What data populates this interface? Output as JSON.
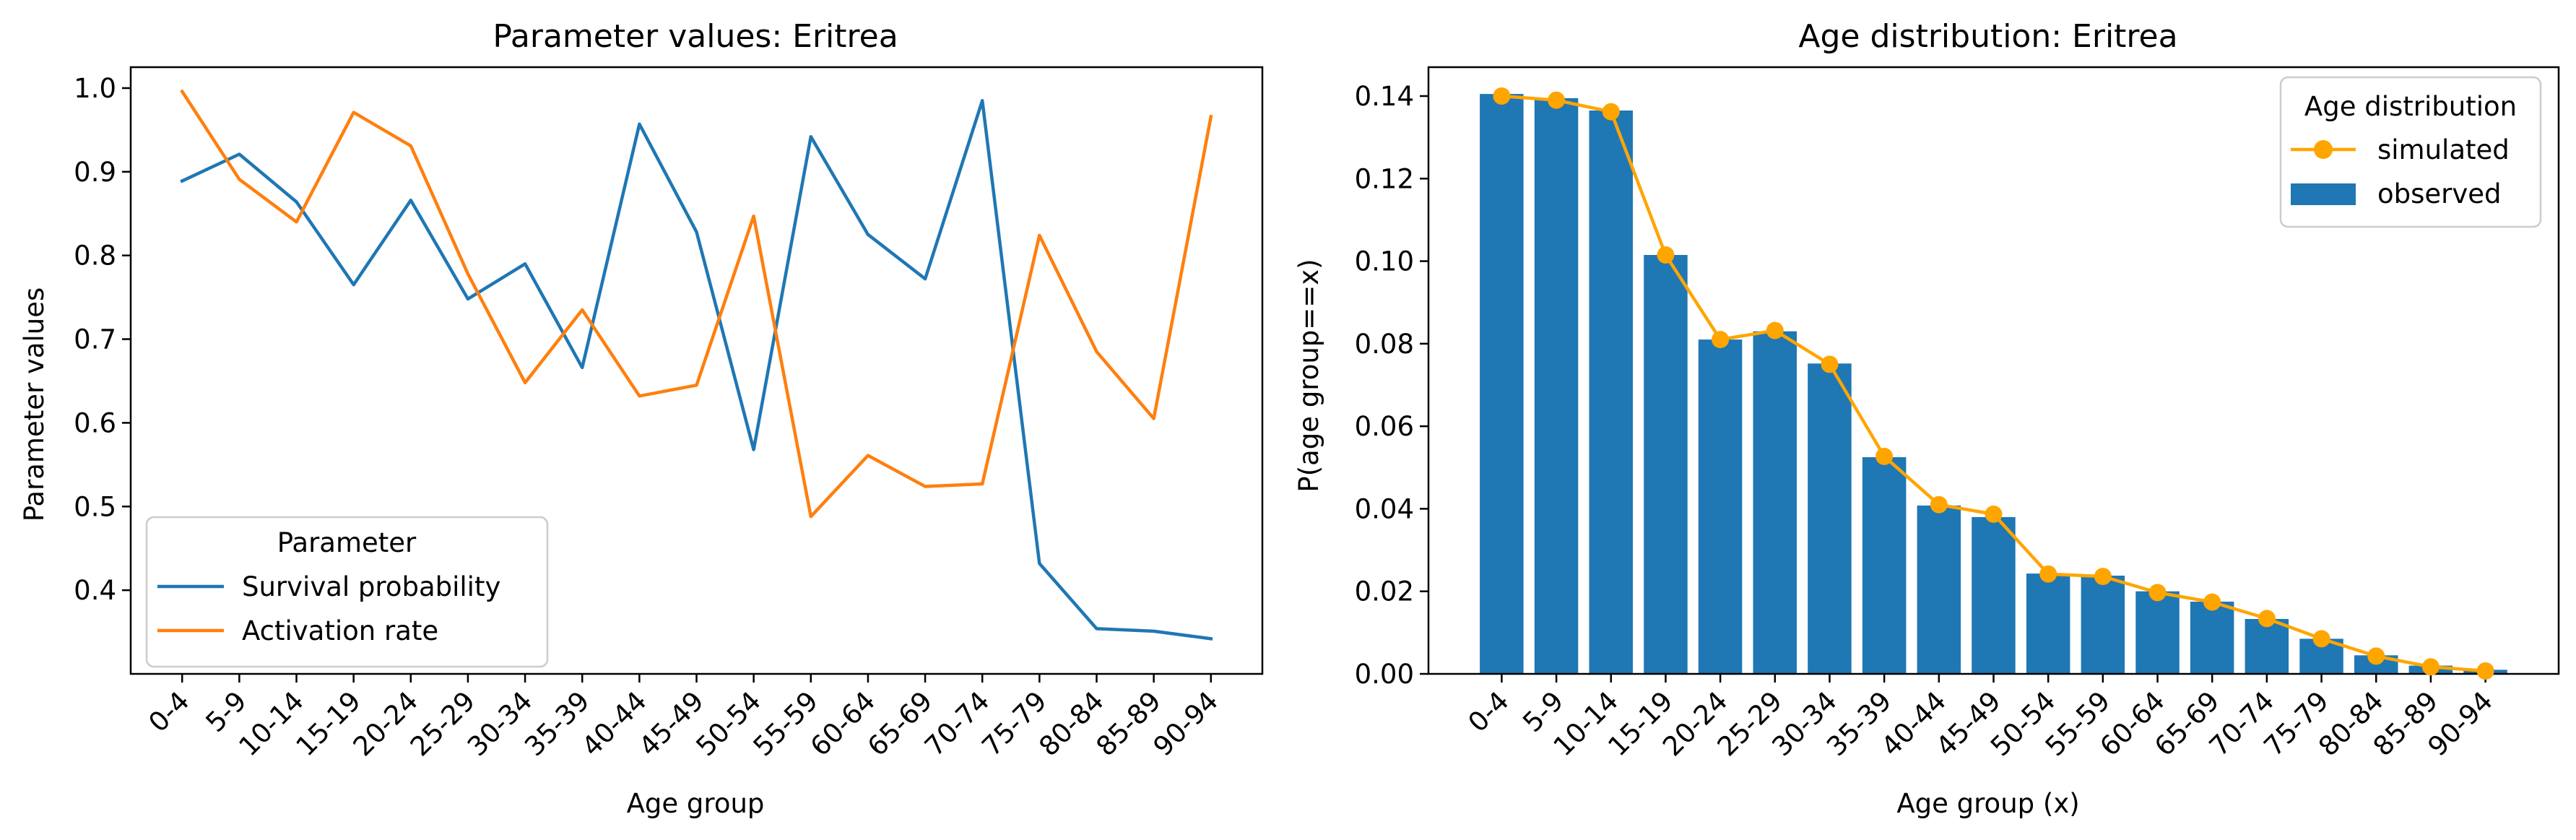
{
  "chart_data": [
    {
      "type": "line",
      "title": "Parameter values: Eritrea",
      "xlabel": "Age group",
      "ylabel": "Parameter values",
      "categories": [
        "0-4",
        "5-9",
        "10-14",
        "15-19",
        "20-24",
        "25-29",
        "30-34",
        "35-39",
        "40-44",
        "45-49",
        "50-54",
        "55-59",
        "60-64",
        "65-69",
        "70-74",
        "75-79",
        "80-84",
        "85-89",
        "90-94"
      ],
      "ylim": [
        0.3,
        1.025
      ],
      "yticks": [
        0.4,
        0.5,
        0.6,
        0.7,
        0.8,
        0.9,
        1.0
      ],
      "ytick_labels": [
        "0.4",
        "0.5",
        "0.6",
        "0.7",
        "0.8",
        "0.9",
        "1.0"
      ],
      "grid": false,
      "legend": {
        "title": "Parameter",
        "placement": "lower-left"
      },
      "series": [
        {
          "name": "Survival probability",
          "color": "#1f77b4",
          "values": [
            0.889,
            0.921,
            0.864,
            0.765,
            0.866,
            0.748,
            0.79,
            0.666,
            0.957,
            0.828,
            0.568,
            0.942,
            0.825,
            0.772,
            0.985,
            0.432,
            0.354,
            0.351,
            0.342
          ]
        },
        {
          "name": "Activation rate",
          "color": "#ff7f0e",
          "values": [
            0.996,
            0.891,
            0.84,
            0.971,
            0.931,
            0.778,
            0.648,
            0.735,
            0.632,
            0.645,
            0.847,
            0.488,
            0.561,
            0.524,
            0.527,
            0.824,
            0.685,
            0.605,
            0.966
          ]
        }
      ]
    },
    {
      "type": "bar",
      "title": "Age distribution: Eritrea",
      "xlabel": "Age group (x)",
      "ylabel": "P(age group==x)",
      "categories": [
        "0-4",
        "5-9",
        "10-14",
        "15-19",
        "20-24",
        "25-29",
        "30-34",
        "35-39",
        "40-44",
        "45-49",
        "50-54",
        "55-59",
        "60-64",
        "65-69",
        "70-74",
        "75-79",
        "80-84",
        "85-89",
        "90-94"
      ],
      "ylim": [
        0,
        0.147
      ],
      "yticks": [
        0.0,
        0.02,
        0.04,
        0.06,
        0.08,
        0.1,
        0.12,
        0.14
      ],
      "ytick_labels": [
        "0.00",
        "0.02",
        "0.04",
        "0.06",
        "0.08",
        "0.10",
        "0.12",
        "0.14"
      ],
      "grid": false,
      "legend": {
        "title": "Age distribution",
        "placement": "top-right"
      },
      "series": [
        {
          "name": "observed",
          "kind": "bar",
          "color": "#1f77b4",
          "values": [
            0.1405,
            0.1395,
            0.1365,
            0.1015,
            0.081,
            0.083,
            0.0752,
            0.0525,
            0.0408,
            0.038,
            0.0243,
            0.0238,
            0.02,
            0.0175,
            0.0133,
            0.0085,
            0.0045,
            0.002,
            0.001
          ]
        },
        {
          "name": "simulated",
          "kind": "line-marker",
          "color": "#ffa500",
          "values": [
            0.14,
            0.139,
            0.1362,
            0.1015,
            0.081,
            0.0832,
            0.075,
            0.0527,
            0.041,
            0.0387,
            0.0242,
            0.0236,
            0.0197,
            0.0174,
            0.0134,
            0.0085,
            0.0043,
            0.0017,
            0.0007
          ]
        }
      ]
    }
  ]
}
